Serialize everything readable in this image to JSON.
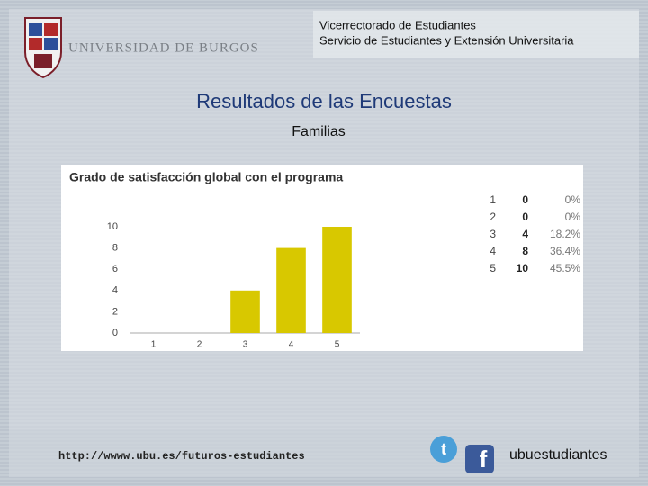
{
  "header": {
    "university": "UNIVERSIDAD DE BURGOS",
    "line1": "Vicerrectorado de Estudiantes",
    "line2": "Servicio de Estudiantes y Extensión Universitaria"
  },
  "title": "Resultados de las Encuestas",
  "subtitle": "Familias",
  "chart_data": {
    "type": "bar",
    "title": "Grado de satisfacción global con el programa",
    "categories": [
      "1",
      "2",
      "3",
      "4",
      "5"
    ],
    "values": [
      0,
      0,
      4,
      8,
      10
    ],
    "color": "#d8c800",
    "ylim": [
      0,
      10
    ],
    "yticks": [
      0,
      2,
      4,
      6,
      8,
      10
    ],
    "grid": false
  },
  "table": {
    "rows": [
      [
        "1",
        "0",
        "0%"
      ],
      [
        "2",
        "0",
        "0%"
      ],
      [
        "3",
        "4",
        "18.2%"
      ],
      [
        "4",
        "8",
        "36.4%"
      ],
      [
        "5",
        "10",
        "45.5%"
      ]
    ]
  },
  "footer": {
    "url": "http://wwww.ubu.es/futuros-estudiantes",
    "handle": "ubuestudiantes"
  }
}
